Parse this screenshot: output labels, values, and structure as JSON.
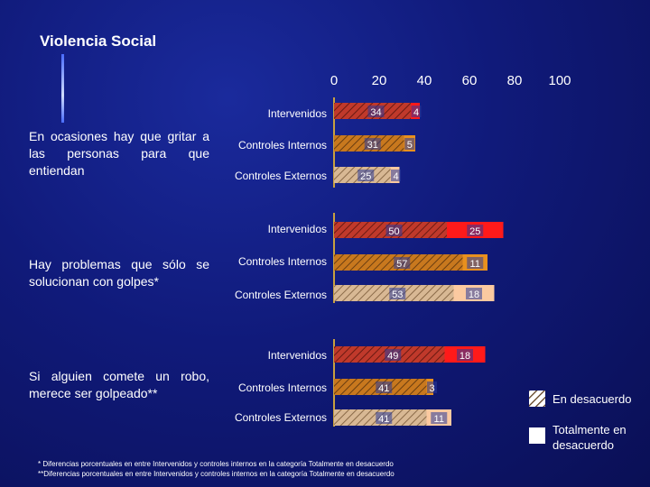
{
  "page": {
    "title": "Violencia Social"
  },
  "statements": [
    "En ocasiones hay que gritar a las personas para que entiendan",
    "Hay problemas que sólo se solucionan con golpes*",
    "Si alguien comete un robo, merece ser golpeado**"
  ],
  "footnotes": [
    "* Diferencias porcentuales en entre Intervenidos y controles internos en la categoría Totalmente en desacuerdo",
    "**Diferencias porcentuales en entre Intervenidos y controles internos en la categoría Totalmente en desacuerdo"
  ],
  "legend": {
    "disagree": "En desacuerdo",
    "totally_disagree": "Totalmente en desacuerdo"
  },
  "colors": {
    "intervenidos_dis": "#c0392b",
    "intervenidos_tot": "#ff1a1a",
    "internos_dis": "#c8781e",
    "internos_tot": "#e8901e",
    "externos_dis": "#c8a882",
    "externos_tot": "#fbc9a0",
    "hatch": "#5a3a1a"
  },
  "chart_data": {
    "type": "bar",
    "orientation": "horizontal",
    "stacked": true,
    "title": "Violencia Social",
    "xlim": [
      0,
      100
    ],
    "xticks": [
      "0",
      "20",
      "40",
      "60",
      "80",
      "100"
    ],
    "categories": [
      "Intervenidos",
      "Controles Internos",
      "Controles Externos"
    ],
    "groups": [
      {
        "statement": "En ocasiones hay que gritar a las personas para que entiendan",
        "bars": [
          {
            "category": "Intervenidos",
            "disagree": 34,
            "totally": 4
          },
          {
            "category": "Controles Internos",
            "disagree": 31,
            "totally": 5
          },
          {
            "category": "Controles Externos",
            "disagree": 25,
            "totally": 4
          }
        ]
      },
      {
        "statement": "Hay problemas que sólo se solucionan con golpes*",
        "bars": [
          {
            "category": "Intervenidos",
            "disagree": 50,
            "totally": 25
          },
          {
            "category": "Controles Internos",
            "disagree": 57,
            "totally": 11
          },
          {
            "category": "Controles Externos",
            "disagree": 53,
            "totally": 18
          }
        ]
      },
      {
        "statement": "Si alguien comete un robo, merece ser golpeado**",
        "bars": [
          {
            "category": "Intervenidos",
            "disagree": 49,
            "totally": 18
          },
          {
            "category": "Controles Internos",
            "disagree": 41,
            "totally": 3
          },
          {
            "category": "Controles Externos",
            "disagree": 41,
            "totally": 11
          }
        ]
      }
    ],
    "series": [
      {
        "name": "En desacuerdo",
        "pattern": "hatched"
      },
      {
        "name": "Totalmente en desacuerdo",
        "pattern": "solid"
      }
    ]
  }
}
